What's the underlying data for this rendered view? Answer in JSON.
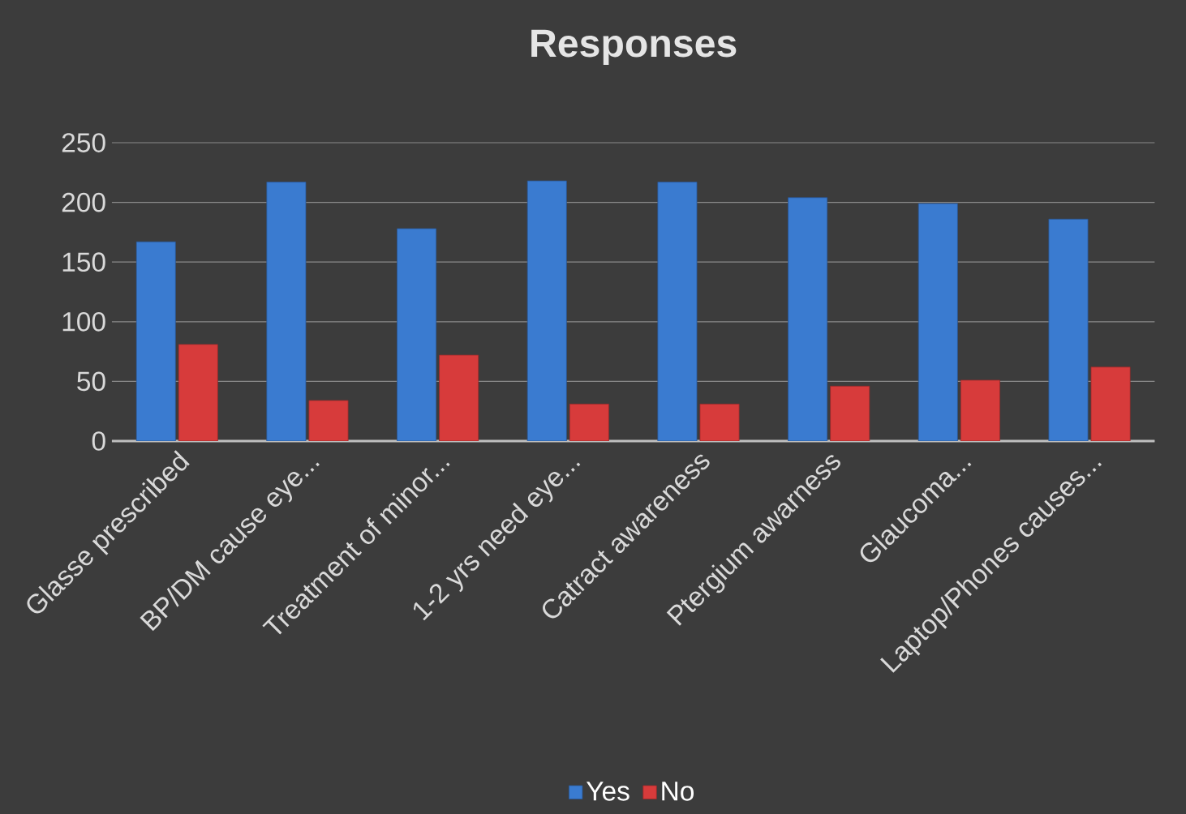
{
  "chart_data": {
    "type": "bar",
    "title": "Responses",
    "categories": [
      "Glasse prescribed",
      "BP/DM cause eye...",
      "Treatment of minor...",
      "1-2 yrs need eye...",
      "Catract awareness",
      "Ptergium awarness",
      "Glaucoma...",
      "Laptop/Phones causes..."
    ],
    "series": [
      {
        "name": "Yes",
        "color": "#3a7bd0",
        "values": [
          167,
          217,
          178,
          218,
          217,
          204,
          199,
          186
        ]
      },
      {
        "name": "No",
        "color": "#d73b3b",
        "values": [
          81,
          34,
          72,
          31,
          31,
          46,
          51,
          62
        ]
      }
    ],
    "ylim": [
      0,
      250
    ],
    "yticks": [
      0,
      50,
      100,
      150,
      200,
      250
    ],
    "grid": "y",
    "legend": "bottom"
  }
}
